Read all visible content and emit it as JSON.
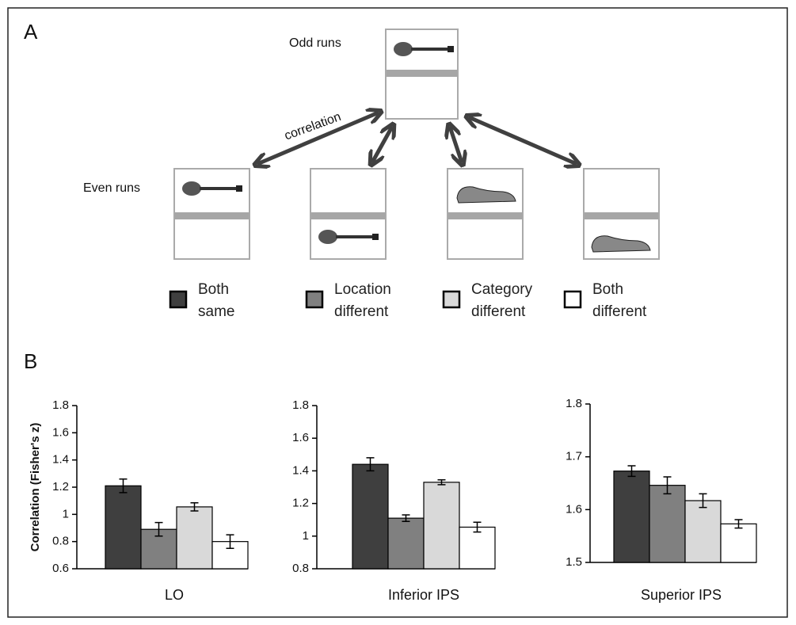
{
  "panel_labels": [
    "A",
    "B"
  ],
  "diagram": {
    "odd_label": "Odd runs",
    "even_label": "Even runs",
    "arrow_label": "correlation"
  },
  "legend": [
    {
      "label": "Both same",
      "color": "#3f3f3f"
    },
    {
      "label": "Location different",
      "color": "#808080"
    },
    {
      "label": "Category different",
      "color": "#d9d9d9"
    },
    {
      "label": "Both different",
      "color": "#ffffff"
    }
  ],
  "chart_data": [
    {
      "type": "bar",
      "xlabel": "LO",
      "ylabel": "Correlation (Fisher's z)",
      "values": [
        1.21,
        0.89,
        1.055,
        0.8
      ],
      "errors": [
        0.05,
        0.05,
        0.03,
        0.05
      ],
      "ylim": [
        0.6,
        1.8
      ],
      "yticks": [
        0.6,
        0.8,
        1,
        1.2,
        1.4,
        1.6,
        1.8
      ]
    },
    {
      "type": "bar",
      "xlabel": "Inferior IPS",
      "values": [
        1.44,
        1.11,
        1.33,
        1.055
      ],
      "errors": [
        0.04,
        0.02,
        0.015,
        0.03
      ],
      "ylim": [
        0.8,
        1.8
      ],
      "yticks": [
        0.8,
        1,
        1.2,
        1.4,
        1.6,
        1.8
      ]
    },
    {
      "type": "bar",
      "xlabel": "Superior IPS",
      "values": [
        1.673,
        1.646,
        1.617,
        1.573
      ],
      "errors": [
        0.01,
        0.016,
        0.013,
        0.008
      ],
      "ylim": [
        1.5,
        1.8
      ],
      "yticks": [
        1.5,
        1.6,
        1.7,
        1.8
      ]
    }
  ]
}
